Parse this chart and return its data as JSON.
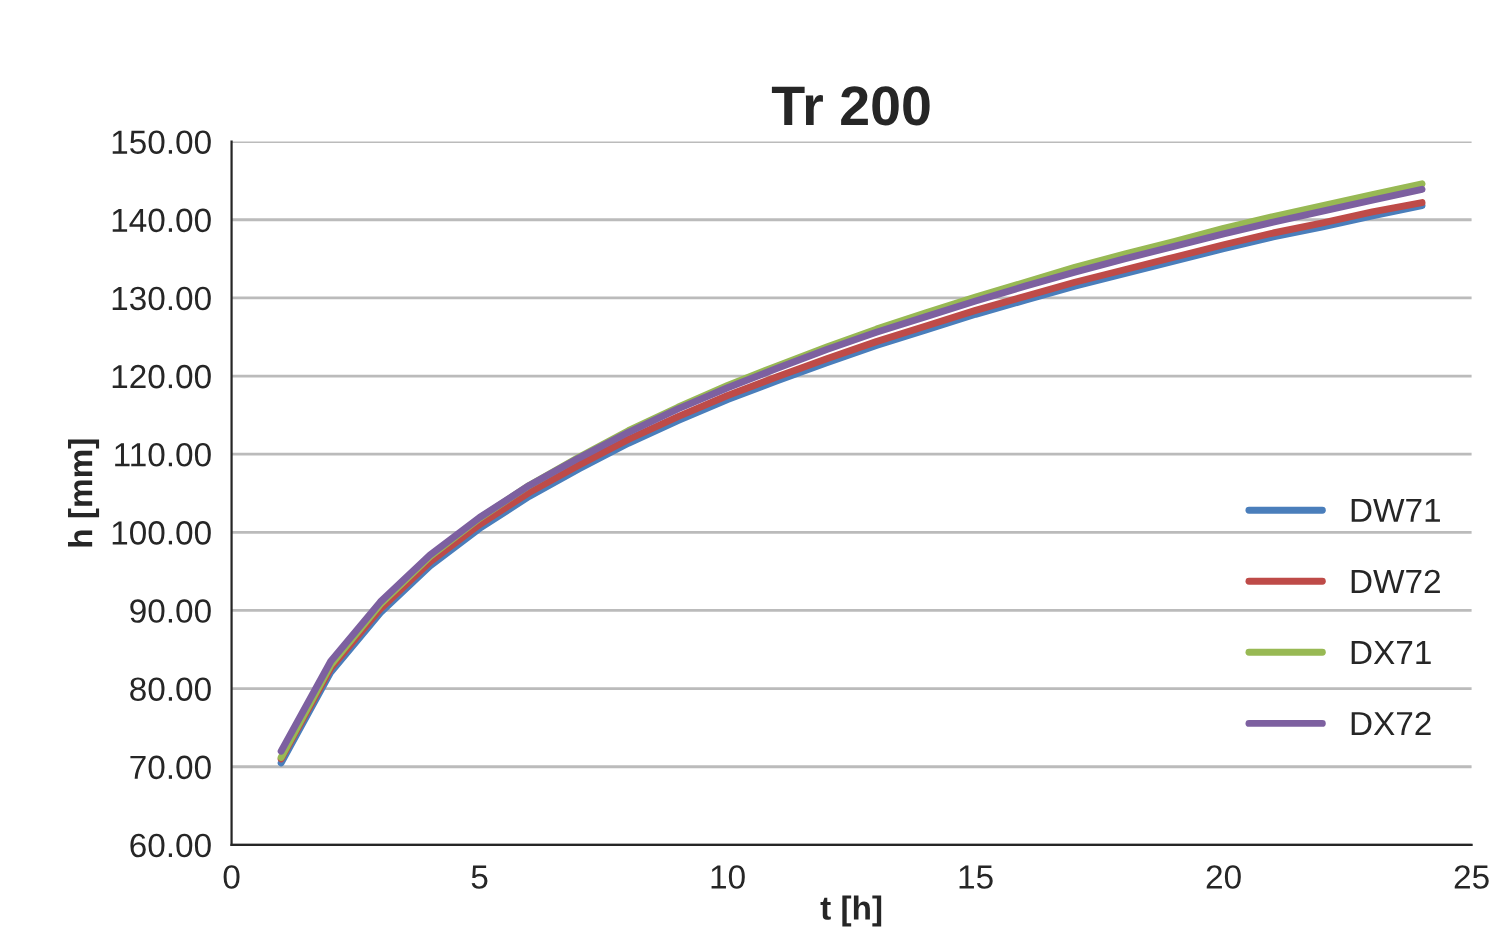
{
  "chart_data": {
    "type": "line",
    "title": "Tr 200",
    "xlabel": "t [h]",
    "ylabel": "h [mm]",
    "xlim": [
      0,
      25
    ],
    "xticks": [
      0,
      5,
      10,
      15,
      20,
      25
    ],
    "ylim": [
      60,
      150
    ],
    "yticks": [
      {
        "value": 60,
        "label": "60.00"
      },
      {
        "value": 70,
        "label": "70.00"
      },
      {
        "value": 80,
        "label": "80.00"
      },
      {
        "value": 90,
        "label": "90.00"
      },
      {
        "value": 100,
        "label": "100.00"
      },
      {
        "value": 110,
        "label": "110.00"
      },
      {
        "value": 120,
        "label": "120.00"
      },
      {
        "value": 130,
        "label": "130.00"
      },
      {
        "value": 140,
        "label": "140.00"
      },
      {
        "value": 150,
        "label": "150.00"
      }
    ],
    "grid": "y",
    "legend": "right",
    "marker": "none",
    "line_style": "solid",
    "x": [
      1,
      2,
      3,
      4,
      5,
      6,
      7,
      8,
      9,
      10,
      11,
      12,
      13,
      14,
      15,
      16,
      17,
      18,
      19,
      20,
      21,
      22,
      23,
      24
    ],
    "series": [
      {
        "name": "DW71",
        "color": "#4a7ebb",
        "values": [
          70.5,
          82.1,
          89.7,
          95.7,
          100.5,
          104.6,
          108.1,
          111.4,
          114.3,
          117.0,
          119.4,
          121.7,
          123.9,
          125.9,
          127.9,
          129.7,
          131.5,
          133.1,
          134.7,
          136.3,
          137.8,
          139.1,
          140.5,
          141.8
        ]
      },
      {
        "name": "DW72",
        "color": "#be4b48",
        "values": [
          71.0,
          82.6,
          90.2,
          96.2,
          101.0,
          105.1,
          108.6,
          111.9,
          114.8,
          117.5,
          119.9,
          122.2,
          124.4,
          126.4,
          128.4,
          130.2,
          132.0,
          133.6,
          135.2,
          136.8,
          138.3,
          139.6,
          141.0,
          142.2
        ]
      },
      {
        "name": "DX71",
        "color": "#98b954",
        "values": [
          71.2,
          83.0,
          90.8,
          96.9,
          101.8,
          106.0,
          109.6,
          113.0,
          116.0,
          118.8,
          121.3,
          123.7,
          126.0,
          128.1,
          130.1,
          132.0,
          133.9,
          135.6,
          137.2,
          138.9,
          140.4,
          141.8,
          143.2,
          144.6
        ]
      },
      {
        "name": "DX72",
        "color": "#7d60a0",
        "values": [
          72.0,
          83.5,
          91.1,
          97.1,
          101.9,
          106.0,
          109.5,
          112.8,
          115.8,
          118.5,
          121.0,
          123.4,
          125.6,
          127.6,
          129.6,
          131.5,
          133.3,
          135.0,
          136.6,
          138.2,
          139.7,
          141.1,
          142.5,
          143.9
        ]
      }
    ]
  }
}
